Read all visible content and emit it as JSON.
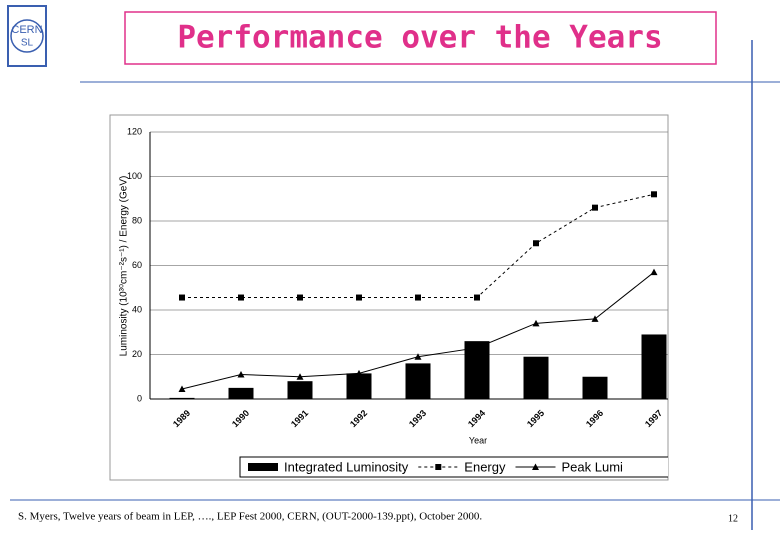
{
  "logo": {
    "line1": "CERN",
    "line2": "SL"
  },
  "title": "Performance over the Years",
  "footer": {
    "citation": "S. Myers, Twelve years of beam in LEP, …., LEP Fest 2000, CERN, (OUT-2000-139.ppt), October 2000.",
    "page": "12"
  },
  "chart_data": {
    "type": "bar_line",
    "x_label": "Year",
    "y_label": "Luminosity (10³⁰cm⁻²s⁻¹) / Energy (GeV)",
    "categories": [
      "1989",
      "1990",
      "1991",
      "1992",
      "1993",
      "1994",
      "1995",
      "1996",
      "1997"
    ],
    "series": [
      {
        "name": "Integrated Luminosity",
        "kind": "bar",
        "color": "#000000",
        "values": [
          0.5,
          5,
          8,
          11.5,
          16,
          26,
          19,
          10,
          29
        ]
      },
      {
        "name": "Energy",
        "kind": "dotted-line",
        "marker": "square",
        "color": "#000000",
        "values": [
          45.6,
          45.6,
          45.6,
          45.6,
          45.6,
          45.6,
          70,
          86,
          92
        ]
      },
      {
        "name": "Peak Lumi",
        "kind": "line",
        "marker": "triangle",
        "color": "#000000",
        "values": [
          4.5,
          11,
          10,
          11.5,
          19,
          23,
          34,
          36,
          57
        ]
      }
    ],
    "ylim": [
      0,
      120
    ],
    "yticks": [
      0,
      20,
      40,
      60,
      80,
      100,
      120
    ],
    "grid": true,
    "legend": "bottom"
  }
}
